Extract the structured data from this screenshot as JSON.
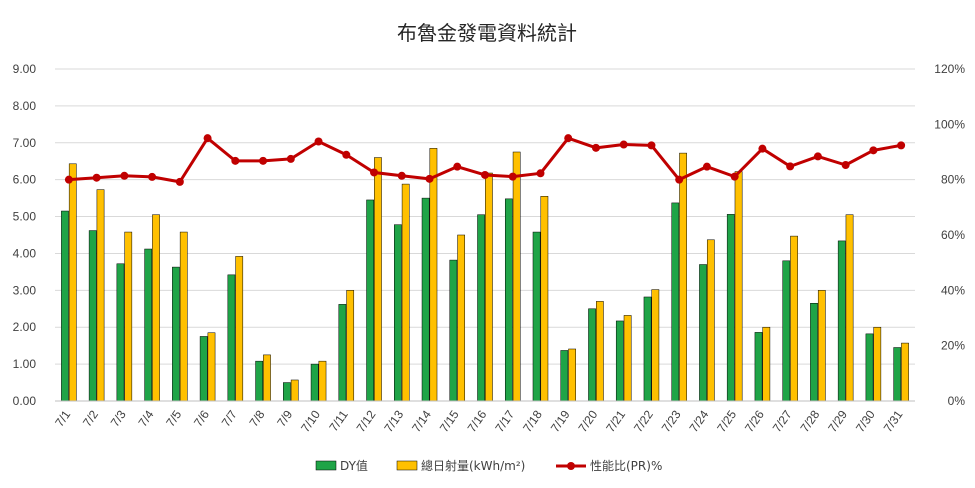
{
  "chart_data": {
    "type": "bar",
    "title": "布魯金發電資料統計",
    "categories": [
      "7/1",
      "7/2",
      "7/3",
      "7/4",
      "7/5",
      "7/6",
      "7/7",
      "7/8",
      "7/9",
      "7/10",
      "7/11",
      "7/12",
      "7/13",
      "7/14",
      "7/15",
      "7/16",
      "7/17",
      "7/18",
      "7/19",
      "7/20",
      "7/21",
      "7/22",
      "7/23",
      "7/24",
      "7/25",
      "7/26",
      "7/27",
      "7/28",
      "7/29",
      "7/30",
      "7/31"
    ],
    "series": [
      {
        "name": "DY值",
        "type": "bar",
        "axis": "left",
        "color": "#1fa447",
        "values": [
          5.15,
          4.62,
          3.72,
          4.12,
          3.63,
          1.75,
          3.42,
          1.08,
          0.5,
          1.0,
          2.62,
          5.45,
          4.78,
          5.5,
          3.82,
          5.05,
          5.48,
          4.58,
          1.37,
          2.5,
          2.17,
          2.82,
          5.37,
          3.7,
          5.06,
          1.86,
          3.8,
          2.65,
          4.34,
          1.82,
          1.45
        ]
      },
      {
        "name": "總日射量(kWh/m²)",
        "type": "bar",
        "axis": "left",
        "color": "#ffc000",
        "values": [
          6.43,
          5.73,
          4.58,
          5.05,
          4.58,
          1.85,
          3.92,
          1.25,
          0.57,
          1.08,
          3.0,
          6.6,
          5.88,
          6.85,
          4.5,
          6.18,
          6.75,
          5.55,
          1.41,
          2.7,
          2.32,
          3.02,
          6.72,
          4.37,
          6.22,
          2.0,
          4.47,
          3.0,
          5.05,
          2.0,
          1.57
        ]
      },
      {
        "name": "性能比(PR)%",
        "type": "line",
        "axis": "right",
        "color": "#c00000",
        "values": [
          80.0,
          80.7,
          81.4,
          81.0,
          79.2,
          95.0,
          86.8,
          86.8,
          87.5,
          93.8,
          89.0,
          82.6,
          81.4,
          80.3,
          84.7,
          81.7,
          81.1,
          82.3,
          95.0,
          91.5,
          92.7,
          92.4,
          80.0,
          84.7,
          81.1,
          91.2,
          84.8,
          88.4,
          85.3,
          90.6,
          92.4
        ]
      }
    ],
    "ylim_left": [
      0,
      9
    ],
    "yticks_left": [
      "0.00",
      "1.00",
      "2.00",
      "3.00",
      "4.00",
      "5.00",
      "6.00",
      "7.00",
      "8.00",
      "9.00"
    ],
    "ylim_right": [
      0,
      120
    ],
    "yticks_right": [
      "0%",
      "20%",
      "40%",
      "60%",
      "80%",
      "100%",
      "120%"
    ],
    "grid": true,
    "legend_position": "bottom"
  }
}
